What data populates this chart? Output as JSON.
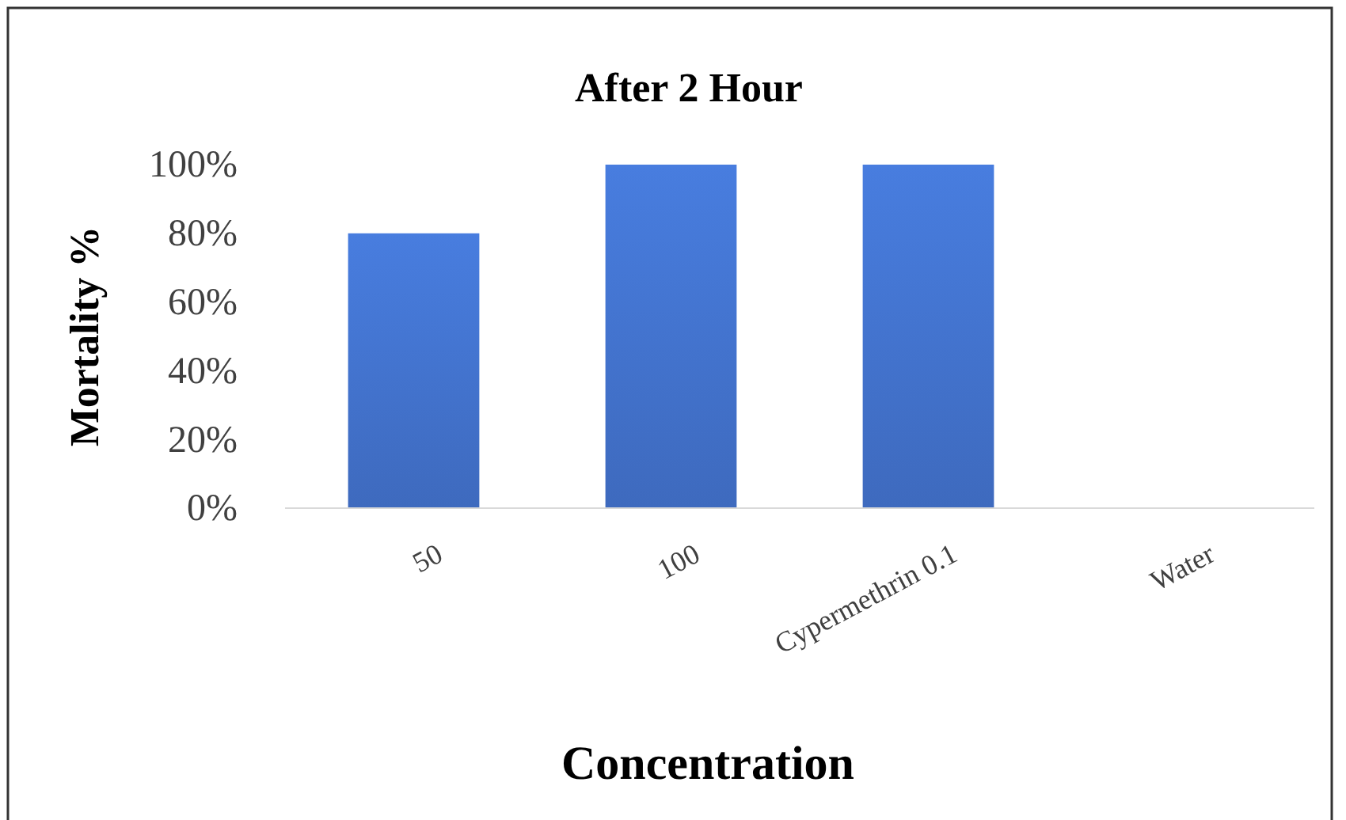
{
  "chart_data": {
    "type": "bar",
    "title": "After 2 Hour",
    "xlabel": "Concentration",
    "ylabel": "Mortality %",
    "categories": [
      "50",
      "100",
      "Cypermethrin 0.1",
      "Water"
    ],
    "values": [
      80,
      100,
      100,
      0
    ],
    "color": "#4170c8",
    "ylim": [
      0,
      100
    ],
    "yticks": [
      {
        "value": 0,
        "label": "0%"
      },
      {
        "value": 20,
        "label": "20%"
      },
      {
        "value": 40,
        "label": "40%"
      },
      {
        "value": 60,
        "label": "60%"
      },
      {
        "value": 80,
        "label": "80%"
      },
      {
        "value": 100,
        "label": "100%"
      }
    ],
    "grid": false
  }
}
